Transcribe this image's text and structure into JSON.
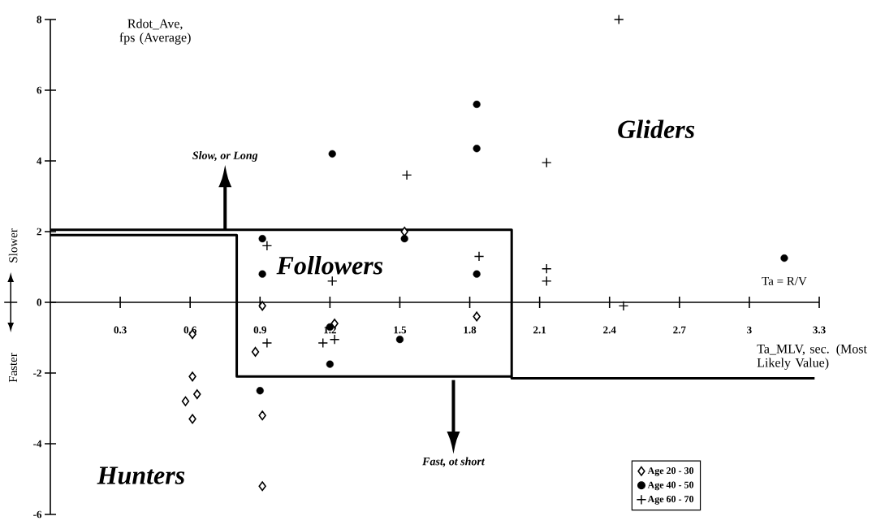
{
  "chart_data": {
    "type": "scatter",
    "xlabel": "Ta_MLV, sec. (Most Likely Value)",
    "ylabel": "Rdot_Ave, fps (Average)",
    "xlim": [
      0,
      3.3
    ],
    "ylim": [
      -6,
      8
    ],
    "xticks": [
      0.3,
      0.6,
      0.9,
      1.2,
      1.5,
      1.8,
      2.1,
      2.4,
      2.7,
      3,
      3.3
    ],
    "yticks": [
      -6,
      -4,
      -2,
      0,
      2,
      4,
      6,
      8
    ],
    "legend": "bottom right",
    "grid": false,
    "series": [
      {
        "name": "Age 20 - 30",
        "color": "#000000",
        "marker": "diamond",
        "x": [
          0.61,
          0.61,
          0.63,
          0.58,
          0.61,
          0.91,
          0.88,
          0.91,
          0.91,
          1.22,
          1.52,
          1.83
        ],
        "values": [
          -0.9,
          -2.1,
          -2.6,
          -2.8,
          -3.3,
          -0.1,
          -1.4,
          -3.2,
          -5.2,
          -0.6,
          2.0,
          -0.4
        ]
      },
      {
        "name": "Age 40 - 50",
        "color": "#000000",
        "marker": "circle",
        "x": [
          0.91,
          0.91,
          1.21,
          1.2,
          1.2,
          0.9,
          1.52,
          1.5,
          1.83,
          1.83,
          1.83,
          3.15
        ],
        "values": [
          1.8,
          0.8,
          4.2,
          -0.7,
          -1.75,
          -2.5,
          1.8,
          -1.05,
          5.6,
          4.35,
          0.8,
          1.25
        ]
      },
      {
        "name": "Age 60 - 70",
        "color": "#000000",
        "marker": "cross",
        "x": [
          2.44,
          2.13,
          1.53,
          0.93,
          1.21,
          1.84,
          2.13,
          2.13,
          2.46,
          0.93,
          1.17,
          1.22
        ],
        "values": [
          8.0,
          3.95,
          3.6,
          1.6,
          0.6,
          1.3,
          0.95,
          0.6,
          -0.1,
          -1.15,
          -1.15,
          -1.05
        ]
      },
      {
        "type": "line",
        "color": "#000000",
        "x": [
          0,
          1.98,
          1.98,
          3.28
        ],
        "values": [
          2.05,
          2.05,
          -2.15,
          -2.15
        ]
      },
      {
        "type": "line",
        "color": "#000000",
        "x": [
          0,
          0.8,
          0.8,
          1.98
        ],
        "values": [
          1.9,
          1.9,
          -2.1,
          -2.1
        ]
      }
    ],
    "annotations": [
      "Slow, or Long",
      "Fast, ot short",
      "Gliders",
      "Followers",
      "Hunters",
      "Ta = R/V",
      "Slower",
      "Faster"
    ]
  }
}
